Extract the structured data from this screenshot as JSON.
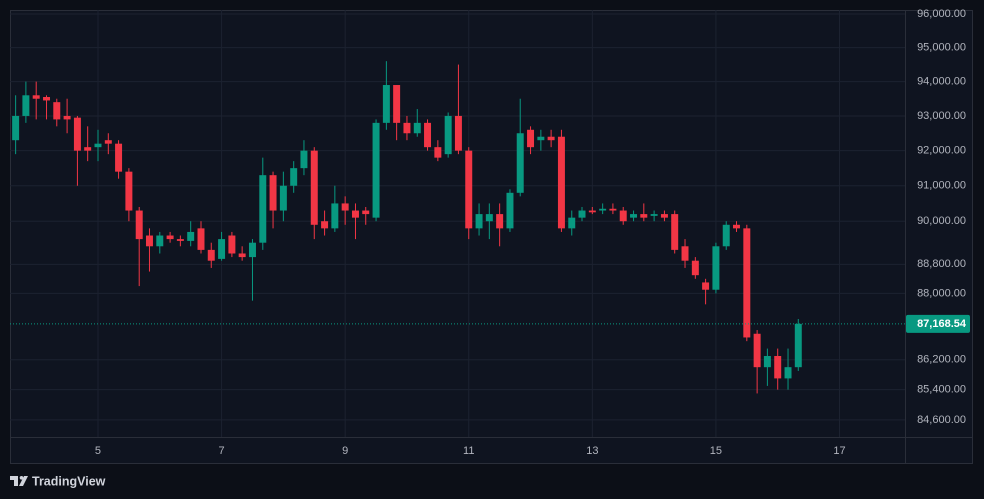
{
  "chart_data": {
    "type": "candlestick",
    "x": [
      3.667,
      3.833,
      4,
      4.167,
      4.333,
      4.5,
      4.667,
      4.833,
      5,
      5.167,
      5.333,
      5.5,
      5.667,
      5.833,
      6,
      6.167,
      6.333,
      6.5,
      6.667,
      6.833,
      7,
      7.167,
      7.333,
      7.5,
      7.667,
      7.833,
      8,
      8.167,
      8.333,
      8.5,
      8.667,
      8.833,
      9,
      9.167,
      9.333,
      9.5,
      9.667,
      9.833,
      10,
      10.167,
      10.333,
      10.5,
      10.667,
      10.833,
      11,
      11.167,
      11.333,
      11.5,
      11.667,
      11.833,
      12,
      12.167,
      12.333,
      12.5,
      12.667,
      12.833,
      13,
      13.167,
      13.333,
      13.5,
      13.667,
      13.833,
      14,
      14.167,
      14.333,
      14.5,
      14.667,
      14.833,
      15,
      15.167,
      15.333,
      15.5,
      15.667,
      15.833,
      16,
      16.167,
      16.333
    ],
    "open": [
      92300,
      93000,
      93600,
      93550,
      93400,
      93000,
      92950,
      92100,
      92100,
      92300,
      92200,
      91400,
      90300,
      89600,
      89300,
      89600,
      89500,
      89450,
      89800,
      89200,
      88950,
      89600,
      89100,
      89000,
      89400,
      91300,
      90300,
      91000,
      91500,
      92000,
      90000,
      89800,
      90500,
      90300,
      90300,
      90100,
      92800,
      93900,
      92800,
      92500,
      92800,
      92100,
      91900,
      93000,
      92000,
      89800,
      90000,
      90200,
      89800,
      90800,
      92600,
      92300,
      92400,
      92400,
      89800,
      90100,
      90300,
      90300,
      90350,
      90300,
      90100,
      90200,
      90150,
      90200,
      90200,
      89300,
      88900,
      88300,
      88100,
      89300,
      89900,
      89800,
      86900,
      86000,
      86300,
      85700,
      86000
    ],
    "high": [
      93600,
      94000,
      94000,
      93600,
      93500,
      93500,
      93000,
      92700,
      92600,
      92500,
      92300,
      91500,
      90400,
      89800,
      89700,
      89700,
      89600,
      90000,
      90000,
      89400,
      89700,
      89700,
      89300,
      89500,
      91800,
      91400,
      91400,
      91700,
      92300,
      92100,
      90300,
      91000,
      90700,
      90500,
      90400,
      92900,
      94600,
      93900,
      93000,
      93200,
      92900,
      92300,
      93100,
      94500,
      92100,
      90500,
      90500,
      90500,
      90900,
      93500,
      92700,
      92600,
      92600,
      92600,
      90300,
      90400,
      90400,
      90500,
      90500,
      90400,
      90300,
      90500,
      90300,
      90300,
      90300,
      89500,
      89000,
      88400,
      89400,
      90000,
      90000,
      89900,
      87000,
      86500,
      86500,
      86500,
      87300
    ],
    "low": [
      91900,
      92800,
      92900,
      92900,
      92700,
      92500,
      91000,
      91700,
      91700,
      91900,
      91200,
      90000,
      88200,
      88600,
      89100,
      89400,
      89300,
      89300,
      89100,
      88700,
      88900,
      89000,
      88900,
      87800,
      89200,
      89800,
      90000,
      90800,
      91300,
      89500,
      89600,
      89700,
      89900,
      89500,
      89900,
      90000,
      92600,
      92300,
      92300,
      92400,
      92000,
      91700,
      91800,
      91900,
      89500,
      89600,
      89500,
      89300,
      89700,
      90700,
      91900,
      92000,
      92100,
      89700,
      89600,
      90000,
      90200,
      90200,
      90200,
      89900,
      90000,
      90000,
      90000,
      90000,
      89100,
      88700,
      88400,
      87700,
      88000,
      89200,
      89700,
      86700,
      85300,
      85500,
      85400,
      85400,
      85900
    ],
    "close": [
      93000,
      93600,
      93500,
      93450,
      92900,
      92900,
      92000,
      92000,
      92200,
      92200,
      91400,
      90300,
      89500,
      89300,
      89600,
      89500,
      89450,
      89700,
      89200,
      88900,
      89500,
      89100,
      89000,
      89400,
      91300,
      90300,
      91000,
      91500,
      92000,
      89900,
      89800,
      90500,
      90300,
      90100,
      90200,
      92800,
      93900,
      92800,
      92500,
      92800,
      92100,
      91800,
      93000,
      92000,
      89800,
      90200,
      90200,
      89800,
      90800,
      92500,
      92100,
      92400,
      92300,
      89800,
      90100,
      90300,
      90250,
      90350,
      90300,
      90000,
      90200,
      90100,
      90200,
      90100,
      89200,
      88900,
      88500,
      88100,
      89300,
      89900,
      89800,
      86800,
      86000,
      86300,
      85700,
      86000,
      87168.54
    ],
    "up_color": "#089981",
    "down_color": "#f23645",
    "xlim": [
      3.576,
      18.06
    ],
    "xticks": [
      5,
      7,
      9,
      11,
      13,
      15,
      17
    ],
    "ylim": [
      84150,
      96120
    ],
    "log_scale": true,
    "grid": true,
    "yticks": [
      {
        "value": 96000,
        "label": "96,000.00"
      },
      {
        "value": 95000,
        "label": "95,000.00"
      },
      {
        "value": 94000,
        "label": "94,000.00"
      },
      {
        "value": 93000,
        "label": "93,000.00"
      },
      {
        "value": 92000,
        "label": "92,000.00"
      },
      {
        "value": 91000,
        "label": "91,000.00"
      },
      {
        "value": 90000,
        "label": "90,000.00"
      },
      {
        "value": 88800,
        "label": "88,800.00"
      },
      {
        "value": 88000,
        "label": "88,000.00"
      },
      {
        "value": 86200,
        "label": "86,200.00"
      },
      {
        "value": 85400,
        "label": "85,400.00"
      },
      {
        "value": 84600,
        "label": "84,600.00"
      }
    ],
    "last_price": {
      "value": 87168.54,
      "label": "87,168.54"
    }
  },
  "brand": "TradingView"
}
